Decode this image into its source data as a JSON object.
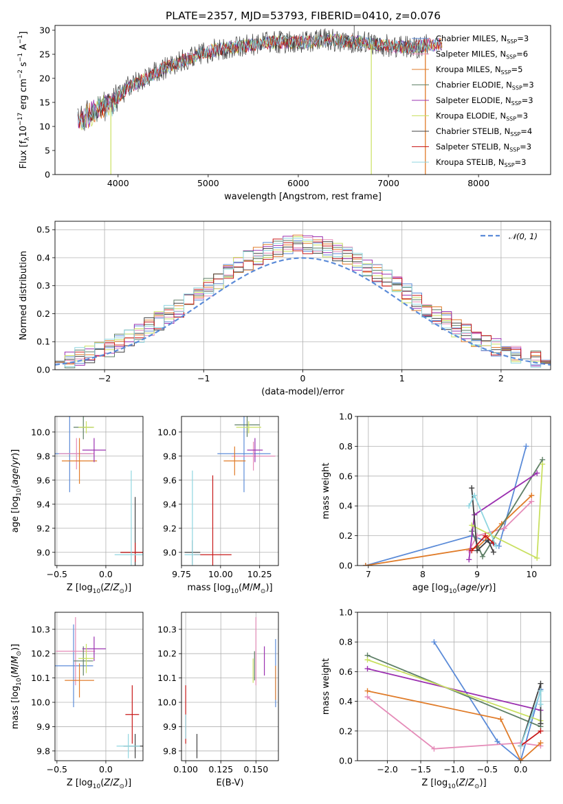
{
  "colors": {
    "chabrier_miles": "#5b8bd8",
    "salpeter_miles": "#e58bb8",
    "kroupa_miles": "#e07b28",
    "chabrier_elodie": "#5e7f66",
    "salpeter_elodie": "#9b30b0",
    "kroupa_elodie": "#c9e060",
    "chabrier_stelib": "#404040",
    "salpeter_stelib": "#c81818",
    "kroupa_stelib": "#8fd6e0",
    "gauss": "#5b8bd8"
  },
  "chart_data": [
    {
      "type": "line",
      "title": "PLATE=2357, MJD=53793, FIBERID=0410, z=0.076",
      "xlabel": "wavelength [Angstrom, rest frame]",
      "ylabel": "Flux [fλ10⁻¹⁷ erg cm⁻² s⁻¹ A⁻¹]",
      "xlim": [
        3300,
        8800
      ],
      "ylim": [
        0,
        31
      ],
      "xticks": [
        "4000",
        "5000",
        "6000",
        "7000",
        "8000"
      ],
      "yticks": [
        "0",
        "5",
        "10",
        "15",
        "20",
        "25",
        "30"
      ],
      "legend_position": "right",
      "series_continuum": [
        {
          "x": 3550,
          "y": 11
        },
        {
          "x": 3650,
          "y": 12
        },
        {
          "x": 3800,
          "y": 14
        },
        {
          "x": 3950,
          "y": 15
        },
        {
          "x": 4100,
          "y": 18
        },
        {
          "x": 4300,
          "y": 20
        },
        {
          "x": 4500,
          "y": 22
        },
        {
          "x": 4700,
          "y": 23.5
        },
        {
          "x": 4900,
          "y": 25
        },
        {
          "x": 5100,
          "y": 26
        },
        {
          "x": 5300,
          "y": 26.5
        },
        {
          "x": 5500,
          "y": 27
        },
        {
          "x": 5700,
          "y": 27.5
        },
        {
          "x": 5900,
          "y": 27.5
        },
        {
          "x": 6100,
          "y": 27.5
        },
        {
          "x": 6300,
          "y": 28
        },
        {
          "x": 6500,
          "y": 27.8
        },
        {
          "x": 6700,
          "y": 27.5
        },
        {
          "x": 6900,
          "y": 27
        },
        {
          "x": 7100,
          "y": 26.5
        },
        {
          "x": 7300,
          "y": 26.5
        },
        {
          "x": 7450,
          "y": 27
        }
      ],
      "series": [
        {
          "name": "Chabrier MILES, N",
          "nssp": "=3",
          "color_key": "chabrier_miles"
        },
        {
          "name": "Salpeter MILES, N",
          "nssp": "=6",
          "color_key": "salpeter_miles"
        },
        {
          "name": "Kroupa MILES, N",
          "nssp": "=5",
          "color_key": "kroupa_miles"
        },
        {
          "name": "Chabrier ELODIE, N",
          "nssp": "=3",
          "color_key": "chabrier_elodie"
        },
        {
          "name": "Salpeter ELODIE, N",
          "nssp": "=3",
          "color_key": "salpeter_elodie"
        },
        {
          "name": "Kroupa ELODIE, N",
          "nssp": "=3",
          "color_key": "kroupa_elodie"
        },
        {
          "name": "Chabrier STELIB, N",
          "nssp": "=4",
          "color_key": "chabrier_stelib"
        },
        {
          "name": "Salpeter STELIB, N",
          "nssp": "=3",
          "color_key": "salpeter_stelib"
        },
        {
          "name": "Kroupa STELIB, N",
          "nssp": "=3",
          "color_key": "kroupa_stelib"
        }
      ],
      "nssp_subscript": "SSP"
    },
    {
      "type": "area",
      "xlabel": "(data-model)/error",
      "ylabel": "Normed distribution",
      "xlim": [
        -2.5,
        2.5
      ],
      "ylim": [
        0,
        0.53
      ],
      "xticks": [
        "−2",
        "−1",
        "0",
        "1",
        "2"
      ],
      "yticks": [
        "0.0",
        "0.1",
        "0.2",
        "0.3",
        "0.4",
        "0.5"
      ],
      "legend_position": "upper right",
      "legend_label": "𝒩(0, 1)",
      "gaussian": {
        "mean": 0,
        "sigma": 1
      }
    },
    {
      "type": "scatter",
      "xlabel": "Z [log10(Z/Z⊙)]",
      "ylabel": "age [log10(age/yr)]",
      "xlim": [
        -0.52,
        0.38
      ],
      "ylim": [
        8.89,
        10.13
      ],
      "xticks": [
        "−0.5",
        "0.0"
      ],
      "yticks": [
        "9.0",
        "9.2",
        "9.4",
        "9.6",
        "9.8",
        "10.0"
      ],
      "points": [
        {
          "s": "chabrier_miles",
          "x": -0.37,
          "y": 9.82,
          "xe": 0.22,
          "ye": 0.32
        },
        {
          "s": "salpeter_miles",
          "x": -0.3,
          "y": 9.82,
          "xe": 0.18,
          "ye": 0.13
        },
        {
          "s": "kroupa_miles",
          "x": -0.27,
          "y": 9.76,
          "xe": 0.18,
          "ye": 0.19
        },
        {
          "s": "chabrier_elodie",
          "x": -0.23,
          "y": 10.04,
          "xe": 0.1,
          "ye": 0.1
        },
        {
          "s": "salpeter_elodie",
          "x": -0.12,
          "y": 9.85,
          "xe": 0.12,
          "ye": 0.1
        },
        {
          "s": "kroupa_elodie",
          "x": -0.2,
          "y": 10.04,
          "xe": 0.08,
          "ye": 0.05
        },
        {
          "s": "chabrier_stelib",
          "x": 0.3,
          "y": 9.0,
          "xe": 0.15,
          "ye": 0.46
        },
        {
          "s": "salpeter_stelib",
          "x": 0.3,
          "y": 9.0,
          "xe": 0.15,
          "ye": 0.08
        },
        {
          "s": "kroupa_stelib",
          "x": 0.26,
          "y": 8.98,
          "xe": 0.17,
          "ye": 0.7
        }
      ]
    },
    {
      "type": "scatter",
      "xlabel": "mass [log10(M/M⊙)]",
      "ylabel": "",
      "xlim": [
        9.75,
        10.37
      ],
      "ylim": [
        8.89,
        10.13
      ],
      "xticks": [
        "9.75",
        "10.00",
        "10.25"
      ],
      "yticks": [
        "9.0",
        "9.2",
        "9.4",
        "9.6",
        "9.8",
        "10.0"
      ],
      "points": [
        {
          "s": "chabrier_miles",
          "x": 10.15,
          "y": 9.82,
          "xe": 0.17,
          "ye": 0.32
        },
        {
          "s": "salpeter_miles",
          "x": 10.21,
          "y": 9.8,
          "xe": 0.14,
          "ye": 0.12
        },
        {
          "s": "kroupa_miles",
          "x": 10.09,
          "y": 9.76,
          "xe": 0.07,
          "ye": 0.12
        },
        {
          "s": "chabrier_elodie",
          "x": 10.17,
          "y": 10.06,
          "xe": 0.08,
          "ye": 0.1
        },
        {
          "s": "salpeter_elodie",
          "x": 10.22,
          "y": 9.85,
          "xe": 0.05,
          "ye": 0.1
        },
        {
          "s": "kroupa_elodie",
          "x": 10.18,
          "y": 10.04,
          "xe": 0.08,
          "ye": 0.05
        },
        {
          "s": "chabrier_stelib",
          "x": 9.82,
          "y": 9.0,
          "xe": 0.05,
          "ye": 0.1
        },
        {
          "s": "salpeter_stelib",
          "x": 9.95,
          "y": 8.98,
          "xe": 0.12,
          "ye": 0.66
        },
        {
          "s": "kroupa_stelib",
          "x": 9.82,
          "y": 8.98,
          "xe": 0.05,
          "ye": 0.7
        }
      ]
    },
    {
      "type": "line",
      "xlabel": "age [log10(age/yr)]",
      "ylabel": "mass weight",
      "xlim": [
        6.8,
        10.35
      ],
      "ylim": [
        0,
        1
      ],
      "xticks": [
        "7",
        "8",
        "9",
        "10"
      ],
      "yticks": [
        "0.0",
        "0.2",
        "0.4",
        "0.6",
        "0.8",
        "1.0"
      ],
      "series": [
        {
          "s": "chabrier_miles",
          "x": [
            6.95,
            8.9,
            9.4,
            9.9
          ],
          "y": [
            0.0,
            0.2,
            0.13,
            0.8
          ]
        },
        {
          "s": "salpeter_miles",
          "x": [
            8.85,
            9.0,
            9.5,
            10.0
          ],
          "y": [
            0.1,
            0.2,
            0.25,
            0.43
          ]
        },
        {
          "s": "kroupa_miles",
          "x": [
            6.95,
            9.0,
            9.45,
            10.0
          ],
          "y": [
            0.0,
            0.12,
            0.28,
            0.47
          ]
        },
        {
          "s": "chabrier_elodie",
          "x": [
            8.9,
            9.1,
            10.2
          ],
          "y": [
            0.23,
            0.06,
            0.71
          ]
        },
        {
          "s": "salpeter_elodie",
          "x": [
            8.85,
            8.95,
            10.1
          ],
          "y": [
            0.04,
            0.34,
            0.62
          ]
        },
        {
          "s": "kroupa_elodie",
          "x": [
            8.9,
            10.1,
            10.2
          ],
          "y": [
            0.27,
            0.05,
            0.68
          ]
        },
        {
          "s": "chabrier_stelib",
          "x": [
            8.9,
            9.0,
            9.2,
            9.3
          ],
          "y": [
            0.52,
            0.1,
            0.17,
            0.09
          ]
        },
        {
          "s": "salpeter_stelib",
          "x": [
            8.9,
            9.15,
            9.3
          ],
          "y": [
            0.1,
            0.2,
            0.15
          ]
        },
        {
          "s": "kroupa_stelib",
          "x": [
            8.85,
            8.95,
            9.35
          ],
          "y": [
            0.4,
            0.47,
            0.13
          ]
        }
      ]
    },
    {
      "type": "scatter",
      "xlabel": "Z [log10(Z/Z⊙)]",
      "ylabel": "mass [log10(M/M⊙)]",
      "xlim": [
        -0.52,
        0.38
      ],
      "ylim": [
        9.76,
        10.37
      ],
      "xticks": [
        "−0.5",
        "0.0"
      ],
      "yticks": [
        "9.8",
        "9.9",
        "10.0",
        "10.1",
        "10.2",
        "10.3"
      ],
      "points": [
        {
          "s": "chabrier_miles",
          "x": -0.33,
          "y": 10.15,
          "xe": 0.2,
          "ye": 0.17
        },
        {
          "s": "salpeter_miles",
          "x": -0.31,
          "y": 10.21,
          "xe": 0.2,
          "ye": 0.14
        },
        {
          "s": "kroupa_miles",
          "x": -0.27,
          "y": 10.09,
          "xe": 0.15,
          "ye": 0.07
        },
        {
          "s": "chabrier_elodie",
          "x": -0.23,
          "y": 10.17,
          "xe": 0.1,
          "ye": 0.06
        },
        {
          "s": "salpeter_elodie",
          "x": -0.12,
          "y": 10.22,
          "xe": 0.12,
          "ye": 0.05
        },
        {
          "s": "kroupa_elodie",
          "x": -0.2,
          "y": 10.18,
          "xe": 0.08,
          "ye": 0.06
        },
        {
          "s": "chabrier_stelib",
          "x": 0.3,
          "y": 9.82,
          "xe": 0.12,
          "ye": 0.05
        },
        {
          "s": "salpeter_stelib",
          "x": 0.27,
          "y": 9.95,
          "xe": 0.07,
          "ye": 0.12
        },
        {
          "s": "kroupa_stelib",
          "x": 0.23,
          "y": 9.82,
          "xe": 0.12,
          "ye": 0.05
        }
      ]
    },
    {
      "type": "scatter",
      "xlabel": "E(B-V)",
      "ylabel": "",
      "xlim": [
        0.097,
        0.166
      ],
      "ylim": [
        9.76,
        10.37
      ],
      "xticks": [
        "0.100",
        "0.125",
        "0.150"
      ],
      "yticks": [
        "9.8",
        "9.9",
        "10.0",
        "10.1",
        "10.2",
        "10.3"
      ],
      "points": [
        {
          "s": "chabrier_miles",
          "x": 0.164,
          "y": 10.12,
          "ye": 0.14
        },
        {
          "s": "salpeter_miles",
          "x": 0.15,
          "y": 10.21,
          "ye": 0.14
        },
        {
          "s": "kroupa_miles",
          "x": 0.164,
          "y": 10.08,
          "ye": 0.07
        },
        {
          "s": "chabrier_elodie",
          "x": 0.149,
          "y": 10.15,
          "ye": 0.06
        },
        {
          "s": "salpeter_elodie",
          "x": 0.156,
          "y": 10.17,
          "ye": 0.06
        },
        {
          "s": "kroupa_elodie",
          "x": 0.148,
          "y": 10.13,
          "ye": 0.05
        },
        {
          "s": "chabrier_stelib",
          "x": 0.108,
          "y": 9.82,
          "ye": 0.05
        },
        {
          "s": "salpeter_stelib",
          "x": 0.1,
          "y": 9.95,
          "ye": 0.12
        },
        {
          "s": "kroupa_stelib",
          "x": 0.1,
          "y": 9.9,
          "ye": 0.05
        }
      ]
    },
    {
      "type": "line",
      "xlabel": "Z [log10(Z/Z⊙)]",
      "ylabel": "mass weight",
      "xlim": [
        -2.45,
        0.45
      ],
      "ylim": [
        0,
        1
      ],
      "xticks": [
        "−2.0",
        "−1.5",
        "−1.0",
        "−0.5",
        "0.0"
      ],
      "yticks": [
        "0.0",
        "0.2",
        "0.4",
        "0.6",
        "0.8",
        "1.0"
      ],
      "series": [
        {
          "s": "chabrier_miles",
          "x": [
            -1.3,
            -0.35,
            -0.0,
            0.3
          ],
          "y": [
            0.8,
            0.13,
            0.0,
            0.48
          ]
        },
        {
          "s": "salpeter_miles",
          "x": [
            -2.3,
            -1.3,
            0.0,
            0.3
          ],
          "y": [
            0.43,
            0.08,
            0.12,
            0.1
          ]
        },
        {
          "s": "kroupa_miles",
          "x": [
            -2.3,
            -0.3,
            0.0,
            0.3
          ],
          "y": [
            0.47,
            0.28,
            0.0,
            0.12
          ]
        },
        {
          "s": "chabrier_elodie",
          "x": [
            -2.3,
            0.3
          ],
          "y": [
            0.71,
            0.23
          ]
        },
        {
          "s": "salpeter_elodie",
          "x": [
            -2.3,
            0.3
          ],
          "y": [
            0.62,
            0.34
          ]
        },
        {
          "s": "kroupa_elodie",
          "x": [
            -2.3,
            0.3
          ],
          "y": [
            0.68,
            0.27
          ]
        },
        {
          "s": "chabrier_stelib",
          "x": [
            0.0,
            0.3,
            0.3
          ],
          "y": [
            0.1,
            0.52,
            0.25
          ]
        },
        {
          "s": "salpeter_stelib",
          "x": [
            0.0,
            0.3
          ],
          "y": [
            0.1,
            0.2
          ]
        },
        {
          "s": "kroupa_stelib",
          "x": [
            0.0,
            0.3,
            0.3
          ],
          "y": [
            0.1,
            0.47,
            0.38
          ]
        }
      ]
    }
  ]
}
